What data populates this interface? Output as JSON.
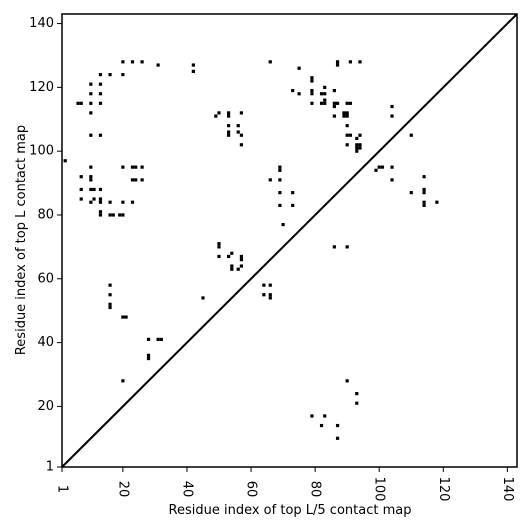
{
  "chart_data": {
    "type": "scatter",
    "title": "",
    "xlabel": "Residue index of top L/5 contact map",
    "ylabel": "Residue index of top L contact map",
    "xlim": [
      1,
      143
    ],
    "ylim": [
      1,
      143
    ],
    "xticks": [
      1,
      20,
      40,
      60,
      80,
      100,
      120,
      140
    ],
    "yticks": [
      1,
      20,
      40,
      60,
      80,
      100,
      120,
      140
    ],
    "xtick_labels": [
      "1",
      "20",
      "40",
      "60",
      "80",
      "100",
      "120",
      "140"
    ],
    "ytick_labels": [
      "1",
      "20",
      "40",
      "60",
      "80",
      "100",
      "120",
      "140"
    ],
    "diagonal_line": true,
    "marker": "square",
    "marker_color": "#000000",
    "points": [
      [
        2,
        97
      ],
      [
        6,
        115
      ],
      [
        7,
        115
      ],
      [
        7,
        92
      ],
      [
        7,
        88
      ],
      [
        7,
        85
      ],
      [
        10,
        121
      ],
      [
        10,
        118
      ],
      [
        10,
        115
      ],
      [
        10,
        112
      ],
      [
        10,
        105
      ],
      [
        10,
        95
      ],
      [
        10,
        92
      ],
      [
        10,
        91
      ],
      [
        10,
        88
      ],
      [
        10,
        84
      ],
      [
        11,
        88
      ],
      [
        11,
        85
      ],
      [
        13,
        124
      ],
      [
        13,
        121
      ],
      [
        13,
        118
      ],
      [
        13,
        115
      ],
      [
        13,
        105
      ],
      [
        13,
        88
      ],
      [
        13,
        85
      ],
      [
        13,
        84
      ],
      [
        13,
        81
      ],
      [
        13,
        80
      ],
      [
        16,
        124
      ],
      [
        16,
        84
      ],
      [
        16,
        80
      ],
      [
        16,
        58
      ],
      [
        16,
        55
      ],
      [
        16,
        52
      ],
      [
        16,
        51
      ],
      [
        17,
        80
      ],
      [
        19,
        80
      ],
      [
        20,
        128
      ],
      [
        20,
        124
      ],
      [
        20,
        95
      ],
      [
        20,
        84
      ],
      [
        20,
        80
      ],
      [
        20,
        48
      ],
      [
        20,
        28
      ],
      [
        21,
        48
      ],
      [
        23,
        128
      ],
      [
        23,
        95
      ],
      [
        23,
        91
      ],
      [
        23,
        84
      ],
      [
        24,
        95
      ],
      [
        24,
        91
      ],
      [
        26,
        128
      ],
      [
        26,
        95
      ],
      [
        26,
        91
      ],
      [
        28,
        41
      ],
      [
        28,
        36
      ],
      [
        28,
        35
      ],
      [
        31,
        127
      ],
      [
        31,
        41
      ],
      [
        32,
        41
      ],
      [
        42,
        127
      ],
      [
        42,
        125
      ],
      [
        45,
        54
      ],
      [
        49,
        111
      ],
      [
        50,
        112
      ],
      [
        50,
        71
      ],
      [
        50,
        70
      ],
      [
        50,
        67
      ],
      [
        53,
        112
      ],
      [
        53,
        111
      ],
      [
        53,
        108
      ],
      [
        53,
        106
      ],
      [
        53,
        105
      ],
      [
        53,
        67
      ],
      [
        54,
        68
      ],
      [
        54,
        64
      ],
      [
        54,
        63
      ],
      [
        56,
        108
      ],
      [
        56,
        106
      ],
      [
        56,
        63
      ],
      [
        57,
        112
      ],
      [
        57,
        105
      ],
      [
        57,
        102
      ],
      [
        57,
        67
      ],
      [
        57,
        66
      ],
      [
        57,
        64
      ],
      [
        64,
        58
      ],
      [
        64,
        55
      ],
      [
        66,
        128
      ],
      [
        66,
        91
      ],
      [
        66,
        58
      ],
      [
        66,
        55
      ],
      [
        66,
        54
      ],
      [
        69,
        95
      ],
      [
        69,
        94
      ],
      [
        69,
        91
      ],
      [
        69,
        87
      ],
      [
        69,
        83
      ],
      [
        70,
        77
      ],
      [
        73,
        119
      ],
      [
        73,
        87
      ],
      [
        73,
        83
      ],
      [
        75,
        126
      ],
      [
        75,
        118
      ],
      [
        79,
        123
      ],
      [
        79,
        122
      ],
      [
        79,
        119
      ],
      [
        79,
        118
      ],
      [
        79,
        115
      ],
      [
        79,
        17
      ],
      [
        82,
        118
      ],
      [
        82,
        115
      ],
      [
        82,
        14
      ],
      [
        83,
        120
      ],
      [
        83,
        118
      ],
      [
        83,
        116
      ],
      [
        83,
        115
      ],
      [
        83,
        17
      ],
      [
        86,
        119
      ],
      [
        86,
        115
      ],
      [
        86,
        114
      ],
      [
        86,
        111
      ],
      [
        86,
        70
      ],
      [
        87,
        128
      ],
      [
        87,
        127
      ],
      [
        87,
        115
      ],
      [
        87,
        14
      ],
      [
        87,
        10
      ],
      [
        89,
        112
      ],
      [
        89,
        111
      ],
      [
        90,
        115
      ],
      [
        90,
        112
      ],
      [
        90,
        111
      ],
      [
        90,
        108
      ],
      [
        90,
        105
      ],
      [
        90,
        102
      ],
      [
        90,
        70
      ],
      [
        90,
        28
      ],
      [
        91,
        128
      ],
      [
        91,
        115
      ],
      [
        91,
        105
      ],
      [
        93,
        104
      ],
      [
        93,
        102
      ],
      [
        93,
        101
      ],
      [
        93,
        100
      ],
      [
        93,
        24
      ],
      [
        93,
        21
      ],
      [
        94,
        128
      ],
      [
        94,
        105
      ],
      [
        94,
        102
      ],
      [
        94,
        101
      ],
      [
        99,
        94
      ],
      [
        100,
        95
      ],
      [
        101,
        95
      ],
      [
        104,
        114
      ],
      [
        104,
        111
      ],
      [
        104,
        95
      ],
      [
        104,
        91
      ],
      [
        110,
        105
      ],
      [
        110,
        87
      ],
      [
        114,
        92
      ],
      [
        114,
        88
      ],
      [
        114,
        87
      ],
      [
        114,
        84
      ],
      [
        114,
        83
      ],
      [
        118,
        84
      ]
    ]
  }
}
